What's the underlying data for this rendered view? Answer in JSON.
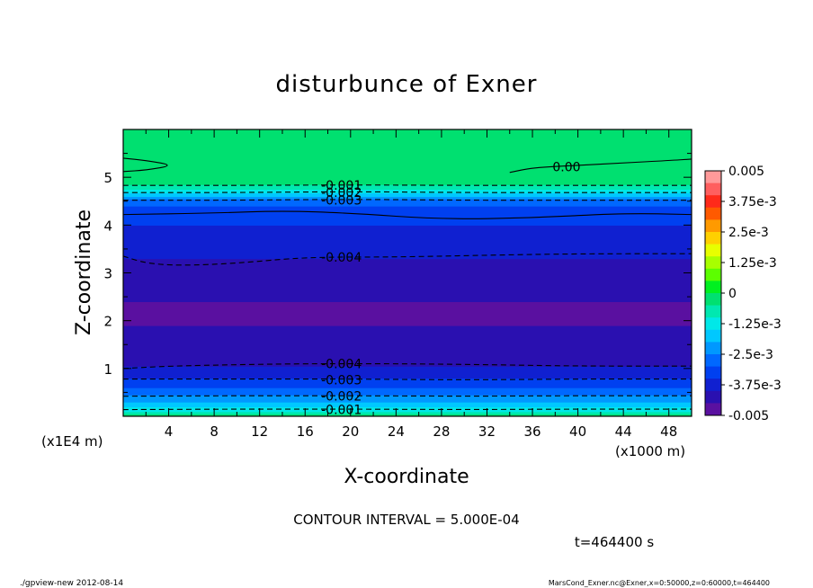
{
  "chart_data": {
    "type": "heatmap",
    "title": "disturbunce of Exner",
    "xlabel": "X-coordinate",
    "ylabel": "Z-coordinate",
    "x_unit_note": "(x1000 m)",
    "y_unit_note": "(x1E4 m)",
    "xlim": [
      0,
      50
    ],
    "ylim": [
      0,
      6
    ],
    "x_ticks": [
      4,
      8,
      12,
      16,
      20,
      24,
      28,
      32,
      36,
      40,
      44,
      48
    ],
    "y_ticks": [
      1,
      2,
      3,
      4,
      5
    ],
    "colorbar": {
      "labels": [
        "0.005",
        "3.75e-3",
        "2.5e-3",
        "1.25e-3",
        "0",
        "-1.25e-3",
        "-2.5e-3",
        "-3.75e-3",
        "-0.005"
      ],
      "values": [
        0.005,
        0.00375,
        0.0025,
        0.00125,
        0,
        -0.00125,
        -0.0025,
        -0.00375,
        -0.005
      ],
      "colors": [
        "#ff9a9a",
        "#ff5f5f",
        "#ff2a1a",
        "#ff5a00",
        "#ff9a00",
        "#ffd000",
        "#e8ff00",
        "#a8ff00",
        "#5cff00",
        "#00f020",
        "#00e070",
        "#00e8b0",
        "#00e8e8",
        "#00c8ff",
        "#0098ff",
        "#0068ff",
        "#0040f0",
        "#1020d0",
        "#2a10b0",
        "#5a10a0"
      ]
    },
    "vertical_profile": [
      {
        "z": 0.0,
        "value": -0.0002
      },
      {
        "z": 0.05,
        "value": -0.0005
      },
      {
        "z": 0.1,
        "value": -0.001
      },
      {
        "z": 0.2,
        "value": -0.0015
      },
      {
        "z": 0.3,
        "value": -0.002
      },
      {
        "z": 0.45,
        "value": -0.0025
      },
      {
        "z": 0.6,
        "value": -0.003
      },
      {
        "z": 0.8,
        "value": -0.0035
      },
      {
        "z": 1.05,
        "value": -0.004
      },
      {
        "z": 1.5,
        "value": -0.0043
      },
      {
        "z": 2.1,
        "value": -0.0046
      },
      {
        "z": 3.0,
        "value": -0.0043
      },
      {
        "z": 3.3,
        "value": -0.004
      },
      {
        "z": 3.8,
        "value": -0.0037
      },
      {
        "z": 4.3,
        "value": -0.0032
      },
      {
        "z": 4.5,
        "value": -0.0028
      },
      {
        "z": 4.6,
        "value": -0.002
      },
      {
        "z": 4.75,
        "value": -0.001
      },
      {
        "z": 4.9,
        "value": -0.0003
      },
      {
        "z": 5.0,
        "value": 0.0
      },
      {
        "z": 6.0,
        "value": 0.0
      }
    ],
    "contours": [
      {
        "label": "0.00",
        "style": "solid",
        "x": [
          34,
          36,
          40,
          44,
          48,
          50
        ],
        "z": [
          5.1,
          5.2,
          5.25,
          5.3,
          5.35,
          5.38
        ]
      },
      {
        "label": "0.00",
        "style": "solid",
        "x": [
          0,
          2,
          4.5,
          2,
          0
        ],
        "z": [
          5.4,
          5.35,
          5.25,
          5.15,
          5.12
        ]
      },
      {
        "label": "-0.001",
        "style": "dashed",
        "x": [
          0,
          10,
          20,
          30,
          40,
          50
        ],
        "z": [
          4.83,
          4.83,
          4.84,
          4.83,
          4.83,
          4.83
        ]
      },
      {
        "label": "-0.002",
        "style": "dashed",
        "x": [
          0,
          10,
          20,
          30,
          40,
          50
        ],
        "z": [
          4.68,
          4.68,
          4.7,
          4.68,
          4.68,
          4.68
        ]
      },
      {
        "label": "-0.003",
        "style": "dashed",
        "x": [
          0,
          10,
          20,
          30,
          40,
          50
        ],
        "z": [
          4.52,
          4.52,
          4.54,
          4.52,
          4.52,
          4.52
        ]
      },
      {
        "label": "",
        "style": "solid",
        "x": [
          0,
          8,
          14,
          20,
          28,
          36,
          44,
          50
        ],
        "z": [
          4.22,
          4.25,
          4.3,
          4.25,
          4.12,
          4.15,
          4.25,
          4.22
        ]
      },
      {
        "label": "-0.004",
        "style": "dashed",
        "x": [
          0,
          2,
          5,
          10,
          16,
          24,
          32,
          40,
          50
        ],
        "z": [
          3.35,
          3.2,
          3.15,
          3.2,
          3.33,
          3.33,
          3.37,
          3.4,
          3.4
        ]
      },
      {
        "label": "-0.004",
        "style": "dashed",
        "x": [
          0,
          4,
          10,
          16,
          24,
          32,
          40,
          50
        ],
        "z": [
          1.0,
          1.05,
          1.08,
          1.1,
          1.1,
          1.08,
          1.05,
          1.05
        ]
      },
      {
        "label": "-0.003",
        "style": "dashed",
        "x": [
          0,
          10,
          20,
          30,
          40,
          50
        ],
        "z": [
          0.78,
          0.78,
          0.78,
          0.76,
          0.78,
          0.78
        ]
      },
      {
        "label": "-0.002",
        "style": "dashed",
        "x": [
          0,
          10,
          20,
          30,
          40,
          50
        ],
        "z": [
          0.42,
          0.43,
          0.43,
          0.42,
          0.43,
          0.43
        ]
      },
      {
        "label": "-0.001",
        "style": "dashed",
        "x": [
          0,
          10,
          20,
          30,
          40,
          50
        ],
        "z": [
          0.14,
          0.15,
          0.15,
          0.14,
          0.15,
          0.15
        ]
      }
    ],
    "annotations": {
      "contour_interval": "CONTOUR INTERVAL = 5.000E-04",
      "time": "t=464400 s",
      "footer_left": "./gpview-new   2012-08-14",
      "footer_right": "MarsCond_Exner.nc@Exner,x=0:50000,z=0:60000,t=464400"
    },
    "legend": "colorbar-right",
    "grid": false
  }
}
